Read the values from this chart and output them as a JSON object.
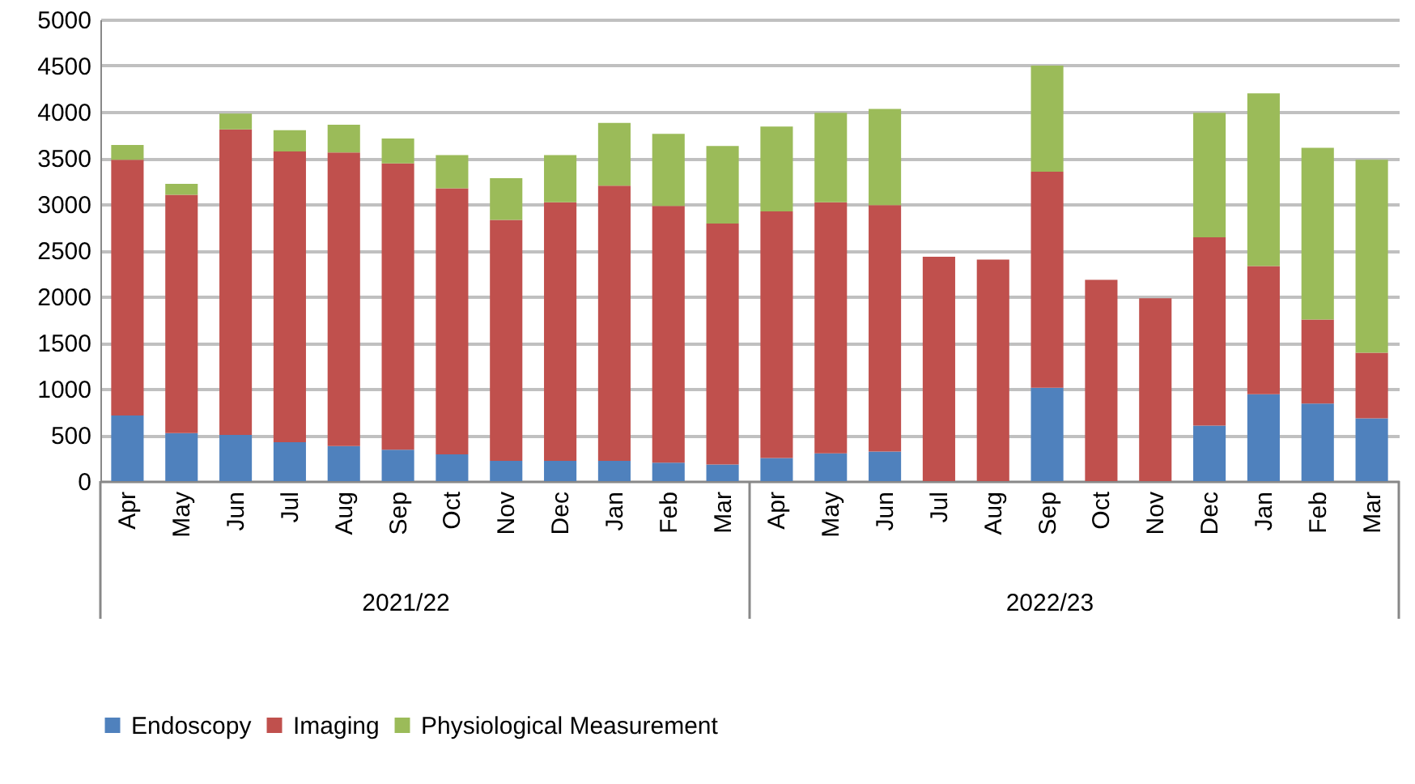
{
  "chart_data": {
    "type": "bar",
    "stacked": true,
    "categories": [
      "Apr",
      "May",
      "Jun",
      "Jul",
      "Aug",
      "Sep",
      "Oct",
      "Nov",
      "Dec",
      "Jan",
      "Feb",
      "Mar",
      "Apr",
      "May",
      "Jun",
      "Jul",
      "Aug",
      "Sep",
      "Oct",
      "Nov",
      "Dec",
      "Jan",
      "Feb",
      "Mar"
    ],
    "series": [
      {
        "name": "Endoscopy",
        "color": "#4f81bd",
        "values": [
          710,
          520,
          500,
          420,
          380,
          340,
          290,
          220,
          220,
          220,
          200,
          180,
          250,
          300,
          320,
          0,
          0,
          1010,
          0,
          0,
          600,
          940,
          840,
          680
        ]
      },
      {
        "name": "Imaging",
        "color": "#c0504d",
        "values": [
          2770,
          2580,
          3310,
          3150,
          3180,
          3100,
          2880,
          2610,
          2800,
          2980,
          2780,
          2610,
          2670,
          2720,
          2670,
          2430,
          2400,
          2340,
          2180,
          1980,
          2040,
          1390,
          910,
          710
        ]
      },
      {
        "name": "Physiological Measurement",
        "color": "#9bbb59",
        "values": [
          160,
          120,
          170,
          230,
          300,
          270,
          360,
          450,
          510,
          680,
          780,
          840,
          920,
          970,
          1040,
          0,
          0,
          1150,
          0,
          0,
          1350,
          1870,
          1860,
          2090
        ]
      }
    ],
    "ylim": [
      0,
      5000
    ],
    "yticks": [
      0,
      500,
      1000,
      1500,
      2000,
      2500,
      3000,
      3500,
      4000,
      4500,
      5000
    ],
    "grid": "y",
    "legend": "bottom",
    "annotations": [
      "2021/22",
      "2022/23"
    ]
  }
}
